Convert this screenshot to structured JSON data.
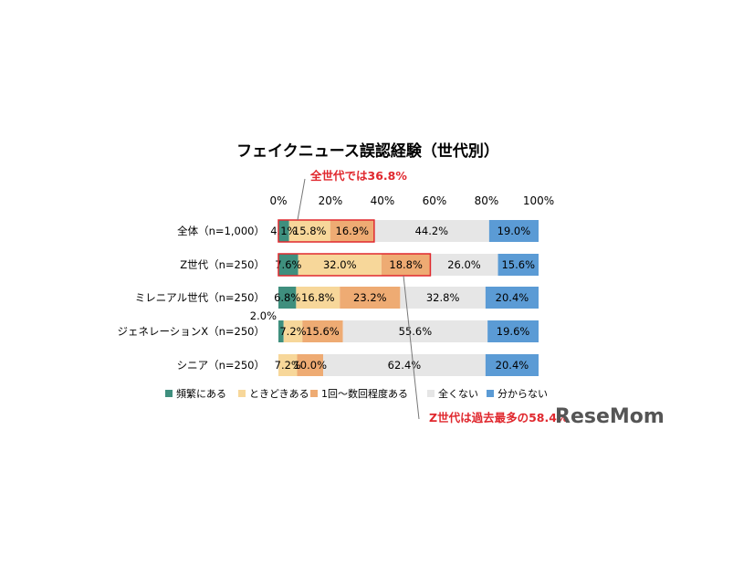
{
  "chart_data": {
    "type": "bar",
    "orientation": "horizontal-stacked-100",
    "title": "フェイクニュース誤認経験（世代別）",
    "x_ticks": [
      "0%",
      "20%",
      "40%",
      "60%",
      "80%",
      "100%"
    ],
    "xlim": [
      0,
      100
    ],
    "categories": [
      "全体（n=1,000）",
      "Z世代（n=250）",
      "ミレニアル世代（n=250）",
      "ジェネレーションX（n=250）",
      "シニア（n=250）"
    ],
    "series": [
      {
        "name": "頻繁にある",
        "color": "#3f8f7e",
        "values": [
          4.1,
          7.6,
          6.8,
          2.0,
          0.0
        ],
        "labels": [
          "4.1%",
          "7.6%",
          "6.8%",
          "2.0%",
          ""
        ]
      },
      {
        "name": "ときどきある",
        "color": "#f7d79a",
        "values": [
          15.8,
          32.0,
          16.8,
          7.2,
          7.2
        ],
        "labels": [
          "15.8%",
          "32.0%",
          "16.8%",
          "7.2%",
          "7.2%"
        ]
      },
      {
        "name": "1回～数回程度ある",
        "color": "#eeab73",
        "values": [
          16.9,
          18.8,
          23.2,
          15.6,
          10.0
        ],
        "labels": [
          "16.9%",
          "18.8%",
          "23.2%",
          "15.6%",
          "10.0%"
        ]
      },
      {
        "name": "全くない",
        "color": "#e6e6e6",
        "values": [
          44.2,
          26.0,
          32.8,
          55.6,
          62.4
        ],
        "labels": [
          "44.2%",
          "26.0%",
          "32.8%",
          "55.6%",
          "62.4%"
        ]
      },
      {
        "name": "分からない",
        "color": "#5b9bd5",
        "values": [
          19.0,
          15.6,
          20.4,
          19.6,
          20.4
        ],
        "labels": [
          "19.0%",
          "15.6%",
          "20.4%",
          "19.6%",
          "20.4%"
        ]
      }
    ],
    "annotations": [
      {
        "text": "全世代では36.8%",
        "row": 0,
        "from": 0,
        "to": 36.8
      },
      {
        "text": "Z世代は過去最多の58.4%",
        "row": 1,
        "from": 0,
        "to": 58.4
      }
    ],
    "legend_position": "bottom",
    "grid": false
  },
  "watermark": "ReseMom",
  "colors": {
    "callout": "#e0282e"
  }
}
